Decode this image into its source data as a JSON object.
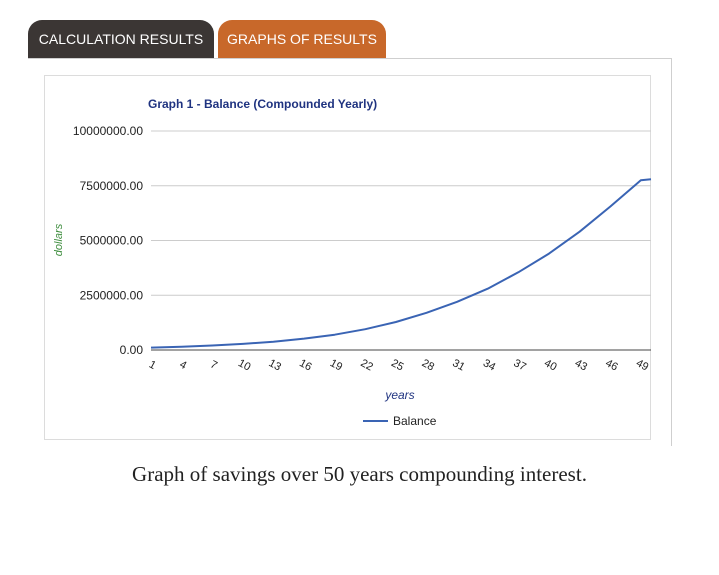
{
  "tabs": [
    {
      "label": "CALCULATION RESULTS",
      "bg": "#3b3634",
      "active": false
    },
    {
      "label": "GRAPHS OF RESULTS",
      "bg": "#c8682a",
      "active": true
    }
  ],
  "caption": "Graph of savings over 50 years compounding interest.",
  "colors": {
    "title": "#1f3380",
    "ylabel": "#3c8c3c",
    "xlabel": "#1f3380",
    "line": "#3a64b4",
    "grid": "#cccccc",
    "axis": "#444444"
  },
  "chart_data": {
    "type": "line",
    "title": "Graph 1 - Balance (Compounded Yearly)",
    "xlabel": "years",
    "ylabel": "dollars",
    "ylim": [
      0,
      10000000
    ],
    "y_ticks": [
      {
        "value": 0,
        "label": "0.00"
      },
      {
        "value": 2500000,
        "label": "2500000.00"
      },
      {
        "value": 5000000,
        "label": "5000000.00"
      },
      {
        "value": 7500000,
        "label": "7500000.00"
      },
      {
        "value": 10000000,
        "label": "10000000.00"
      }
    ],
    "x_ticks": [
      1,
      4,
      7,
      10,
      13,
      16,
      19,
      22,
      25,
      28,
      31,
      34,
      37,
      40,
      43,
      46,
      49
    ],
    "x_range": [
      1,
      50
    ],
    "grid": true,
    "legend_position": "bottom",
    "series": [
      {
        "name": "Balance",
        "x": [
          1,
          4,
          7,
          10,
          13,
          16,
          19,
          22,
          25,
          28,
          31,
          34,
          37,
          40,
          43,
          46,
          49,
          50
        ],
        "values": [
          110000,
          150000,
          205000,
          280000,
          380000,
          520000,
          700000,
          950000,
          1280000,
          1700000,
          2200000,
          2800000,
          3550000,
          4400000,
          5400000,
          6550000,
          7750000,
          7800000
        ]
      }
    ]
  }
}
